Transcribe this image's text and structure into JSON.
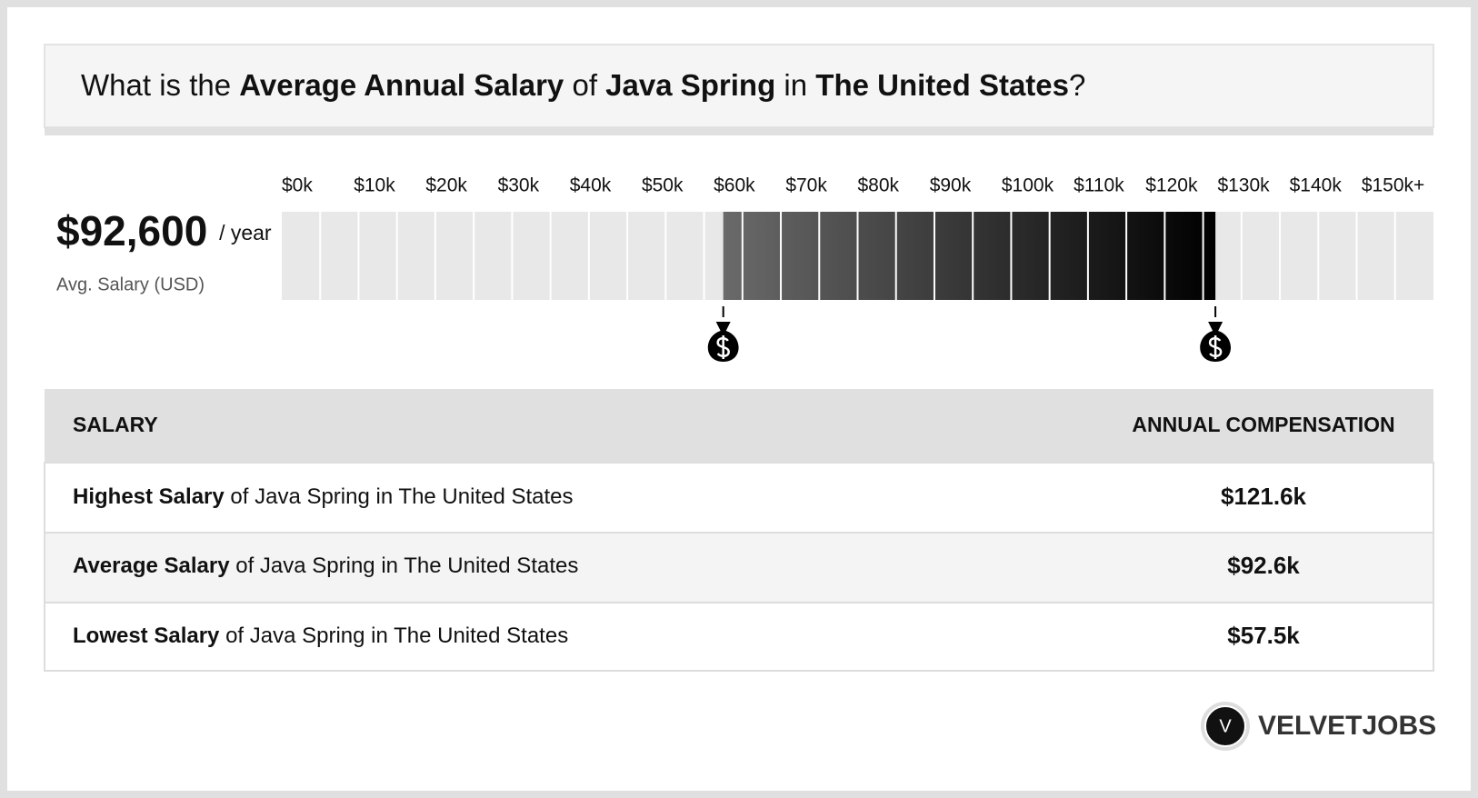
{
  "header": {
    "title_parts": [
      "What is the",
      "Average Annual Salary",
      "of",
      "Java Spring",
      "in",
      "The United States",
      "?"
    ]
  },
  "summary": {
    "value": "$92,600",
    "unit": "/ year",
    "caption": "Avg. Salary (USD)"
  },
  "range_chart": {
    "type": "range",
    "xlim": [
      0,
      150
    ],
    "xticks": [
      {
        "value": 0,
        "label": "$0k"
      },
      {
        "value": 10,
        "label": "$10k"
      },
      {
        "value": 20,
        "label": "$20k"
      },
      {
        "value": 30,
        "label": "$30k"
      },
      {
        "value": 40,
        "label": "$40k"
      },
      {
        "value": 50,
        "label": "$50k"
      },
      {
        "value": 60,
        "label": "$60k"
      },
      {
        "value": 70,
        "label": "$70k"
      },
      {
        "value": 80,
        "label": "$80k"
      },
      {
        "value": 90,
        "label": "$90k"
      },
      {
        "value": 100,
        "label": "$100k"
      },
      {
        "value": 110,
        "label": "$110k"
      },
      {
        "value": 120,
        "label": "$120k"
      },
      {
        "value": 130,
        "label": "$130k"
      },
      {
        "value": 140,
        "label": "$140k"
      },
      {
        "value": 150,
        "label": "$150k+"
      }
    ],
    "low": 57.5,
    "high": 121.6
  },
  "table": {
    "header": [
      "SALARY",
      "ANNUAL COMPENSATION"
    ],
    "rows": [
      {
        "label_bold": "Highest Salary",
        "label_rest": "of Java Spring in The United States",
        "value": "$121.6k"
      },
      {
        "label_bold": "Average Salary",
        "label_rest": "of Java Spring in The United States",
        "value": "$92.6k"
      },
      {
        "label_bold": "Lowest Salary",
        "label_rest": "of Java Spring in The United States",
        "value": "$57.5k"
      }
    ]
  },
  "logo": {
    "icon": "V",
    "name": "VELVETJOBS"
  }
}
